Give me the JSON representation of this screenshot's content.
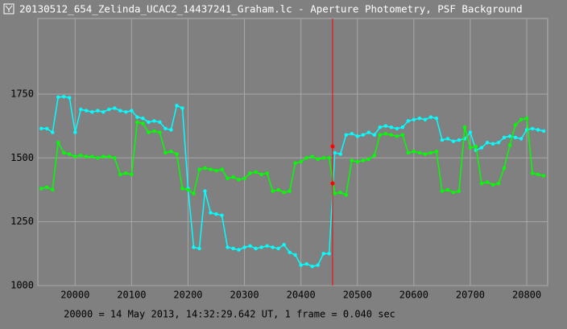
{
  "window_title": "20130512_654_Zelinda_UCAC2_14437241_Graham.lc - Aperture Photometry, PSF Background",
  "chart_data": {
    "type": "line",
    "note": "20000 = 14 May 2013, 14:32:29.642 UT, 1 frame = 0.040 sec",
    "xlim": [
      19934,
      20837
    ],
    "ylim": [
      1000,
      2046
    ],
    "xticks": [
      20000,
      20100,
      20200,
      20300,
      20400,
      20500,
      20600,
      20700,
      20800
    ],
    "yticks": [
      1000,
      1250,
      1500,
      1750
    ],
    "grid": true,
    "x": [
      19940,
      19950,
      19960,
      19970,
      19980,
      19990,
      20000,
      20010,
      20020,
      20030,
      20040,
      20050,
      20060,
      20070,
      20080,
      20090,
      20100,
      20110,
      20120,
      20130,
      20140,
      20150,
      20160,
      20170,
      20180,
      20190,
      20200,
      20210,
      20220,
      20230,
      20240,
      20250,
      20260,
      20270,
      20280,
      20290,
      20300,
      20310,
      20320,
      20330,
      20340,
      20350,
      20360,
      20370,
      20380,
      20390,
      20400,
      20410,
      20420,
      20430,
      20440,
      20450,
      20460,
      20470,
      20480,
      20490,
      20500,
      20510,
      20520,
      20530,
      20540,
      20550,
      20560,
      20570,
      20580,
      20590,
      20600,
      20610,
      20620,
      20630,
      20640,
      20650,
      20660,
      20670,
      20680,
      20690,
      20700,
      20710,
      20720,
      20730,
      20740,
      20750,
      20760,
      20770,
      20780,
      20790,
      20800,
      20810,
      20820,
      20830
    ],
    "series": [
      {
        "color": "#00ffff",
        "values": [
          1615,
          1615,
          1600,
          1738,
          1740,
          1736,
          1600,
          1690,
          1685,
          1680,
          1685,
          1680,
          1690,
          1695,
          1685,
          1680,
          1685,
          1660,
          1655,
          1640,
          1645,
          1640,
          1615,
          1610,
          1705,
          1695,
          1380,
          1150,
          1145,
          1370,
          1285,
          1280,
          1275,
          1150,
          1145,
          1140,
          1150,
          1155,
          1145,
          1150,
          1155,
          1150,
          1145,
          1160,
          1130,
          1120,
          1080,
          1085,
          1075,
          1080,
          1125,
          1125,
          1520,
          1515,
          1590,
          1595,
          1585,
          1590,
          1600,
          1590,
          1620,
          1625,
          1620,
          1615,
          1620,
          1645,
          1650,
          1655,
          1650,
          1660,
          1655,
          1570,
          1575,
          1565,
          1570,
          1575,
          1600,
          1530,
          1540,
          1560,
          1555,
          1560,
          1580,
          1585,
          1580,
          1575,
          1610,
          1615,
          1610,
          1605
        ]
      },
      {
        "color": "#00ff00",
        "values": [
          1380,
          1385,
          1375,
          1560,
          1520,
          1515,
          1505,
          1510,
          1505,
          1505,
          1500,
          1505,
          1505,
          1500,
          1435,
          1440,
          1435,
          1640,
          1635,
          1600,
          1605,
          1600,
          1520,
          1525,
          1515,
          1380,
          1375,
          1360,
          1455,
          1460,
          1455,
          1450,
          1455,
          1420,
          1425,
          1415,
          1420,
          1440,
          1445,
          1435,
          1440,
          1370,
          1375,
          1365,
          1370,
          1480,
          1485,
          1500,
          1505,
          1495,
          1500,
          1500,
          1360,
          1365,
          1355,
          1490,
          1485,
          1490,
          1495,
          1510,
          1590,
          1595,
          1590,
          1585,
          1590,
          1520,
          1525,
          1520,
          1515,
          1520,
          1525,
          1370,
          1375,
          1365,
          1370,
          1620,
          1540,
          1545,
          1400,
          1405,
          1395,
          1400,
          1460,
          1550,
          1630,
          1650,
          1655,
          1440,
          1435,
          1430
        ]
      }
    ],
    "cursor": {
      "x": 20456,
      "color": "#ff0000",
      "values": [
        1545,
        1400
      ]
    }
  }
}
